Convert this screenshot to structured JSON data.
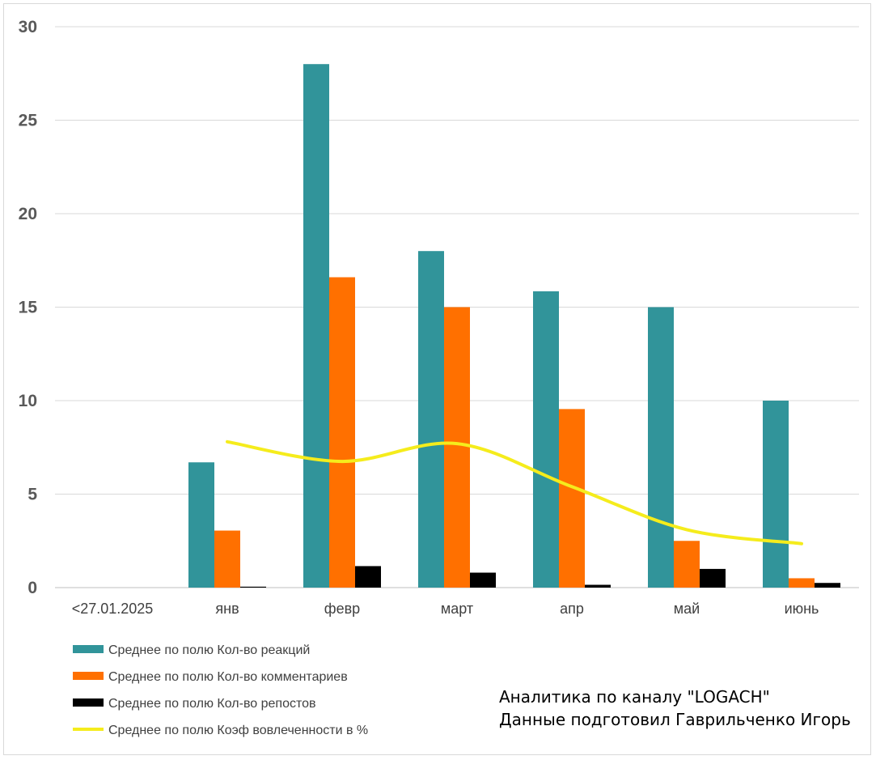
{
  "chart_data": {
    "type": "bar",
    "categories": [
      "<27.01.2025",
      "янв",
      "февр",
      "март",
      "апр",
      "май",
      "июнь"
    ],
    "series": [
      {
        "name": "Среднее по полю Кол-во реакций",
        "kind": "bar",
        "color": "#31949a",
        "values": [
          0,
          6.7,
          28.0,
          18.0,
          15.85,
          15.0,
          10.0
        ]
      },
      {
        "name": "Среднее по полю Кол-во комментариев",
        "kind": "bar",
        "color": "#ff7000",
        "values": [
          0,
          3.05,
          16.6,
          15.0,
          9.55,
          2.5,
          0.5
        ]
      },
      {
        "name": "Среднее по полю Кол-во репостов",
        "kind": "bar",
        "color": "#000000",
        "values": [
          0,
          0.05,
          1.15,
          0.8,
          0.15,
          1.0,
          0.25
        ]
      },
      {
        "name": "Среднее по полю Коэф вовлеченности в %",
        "kind": "line",
        "color": "#f5ec1c",
        "values": [
          null,
          7.8,
          6.75,
          7.7,
          5.4,
          3.1,
          2.35
        ]
      }
    ],
    "yticks": [
      0,
      5,
      10,
      15,
      20,
      25,
      30
    ],
    "ylim": [
      0,
      30
    ],
    "grid": true,
    "legend": "bottom-left"
  },
  "annotation": {
    "line1": "Аналитика по каналу \"LOGACH\"",
    "line2": "Данные подготовил Гаврильченко Игорь"
  }
}
